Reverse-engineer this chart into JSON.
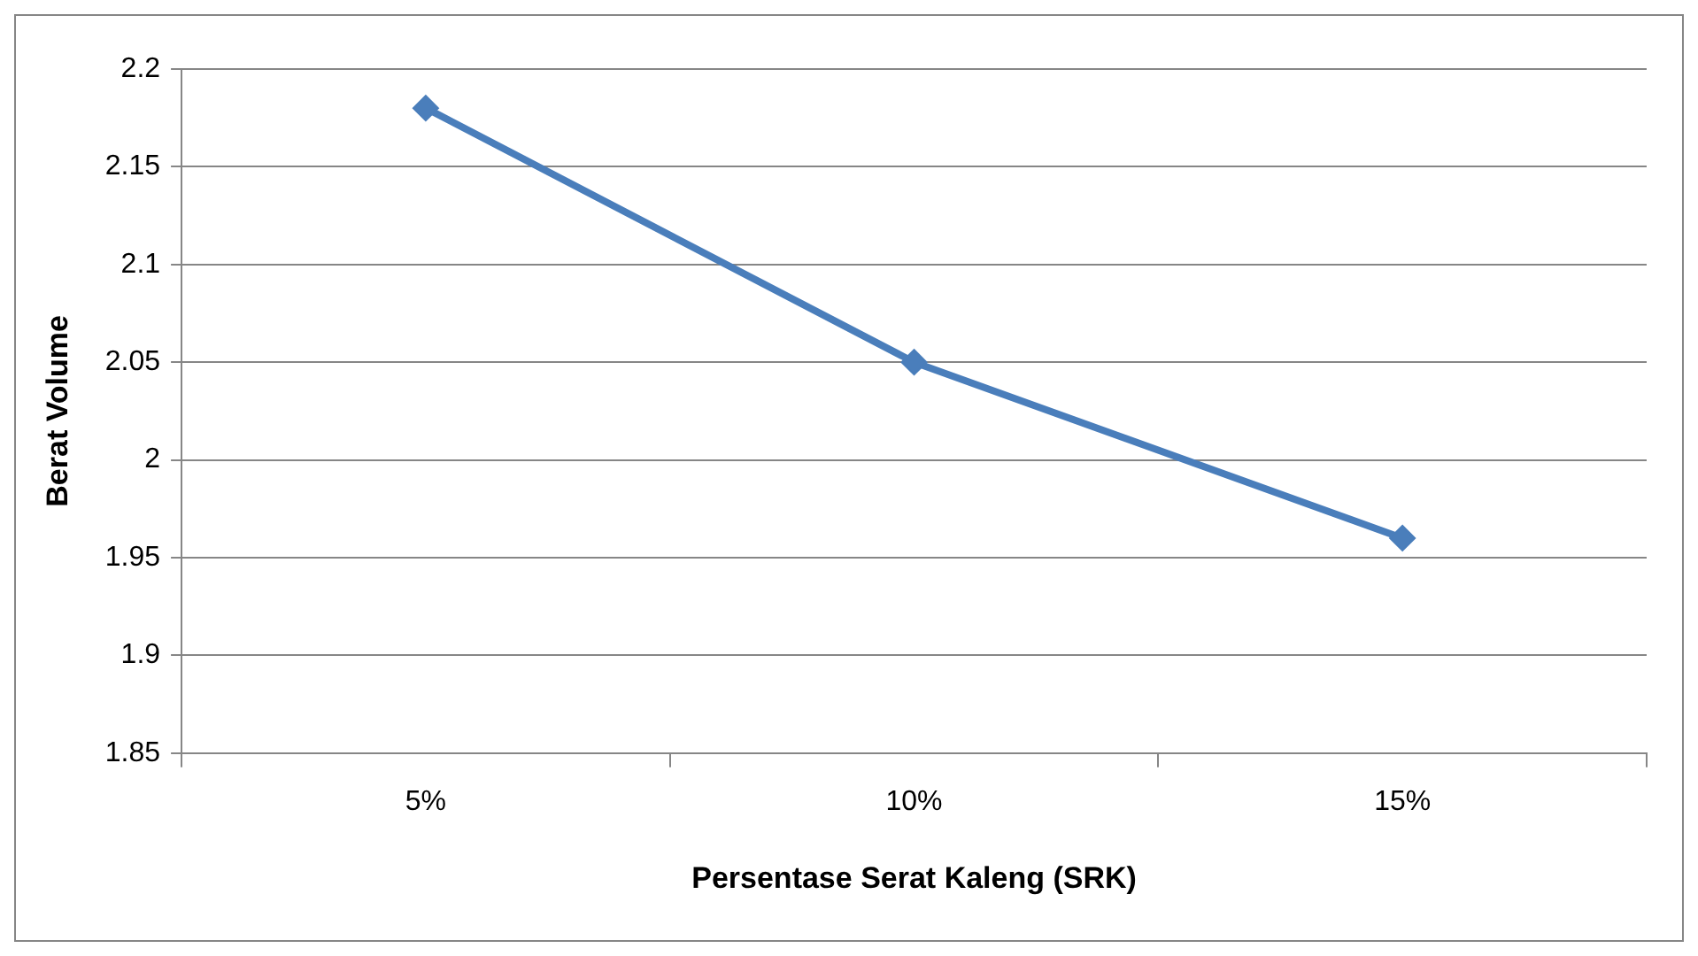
{
  "chart_data": {
    "type": "line",
    "xlabel": "Persentase Serat Kaleng (SRK)",
    "ylabel": "Berat Volume",
    "categories": [
      "5%",
      "10%",
      "15%"
    ],
    "series": [
      {
        "color": "#4a7ebb",
        "values": [
          2.18,
          2.05,
          1.96
        ]
      }
    ],
    "ylim": [
      1.85,
      2.2
    ],
    "yticks": [
      1.85,
      1.9,
      1.95,
      2,
      2.05,
      2.1,
      2.15,
      2.2
    ],
    "grid": "y",
    "legend": false,
    "marker": "diamond",
    "line_style": "solid"
  }
}
